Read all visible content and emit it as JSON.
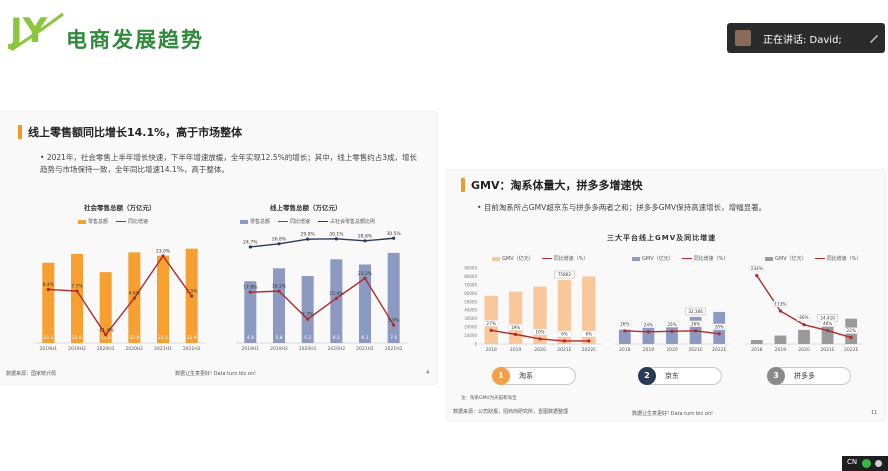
{
  "header": {
    "logo_letters": "JY",
    "title": "电商发展趋势"
  },
  "speaker": {
    "text": "正在讲话: David;"
  },
  "slide1": {
    "title": "线上零售额同比增长14.1%，高于市场整体",
    "bullet": "2021年，社会零售上半年增长快速，下半年增速放缓，全年实现12.5%的增长；其中，线上零售约占3成，增长趋势与市场保持一致，全年同比增速14.1%，高于整体。",
    "left_chart_title": "社会零售总额（万亿元）",
    "right_chart_title": "线上零售总额（万亿元）",
    "legend_left": [
      "零售总额",
      "同比增速"
    ],
    "legend_right": [
      "零售总额",
      "同比增速",
      "占社会零售总额比例"
    ],
    "source": "数据来源：国家统计局",
    "footer": "数据让生意更好! Data turn biz on!",
    "page": "4"
  },
  "slide2": {
    "title": "GMV：淘系体量大，拼多多增速快",
    "bullet": "目前淘系所占GMV超京东与拼多多两者之和；拼多多GMV保持高速增长，增幅显著。",
    "chart_title": "三大平台线上GMV及同比增速",
    "legend": [
      "GMV（亿元）",
      "同比增速（%）"
    ],
    "platforms": [
      {
        "num": "1",
        "name": "淘系",
        "color": "#f5a04a"
      },
      {
        "num": "2",
        "name": "京东",
        "color": "#2d3a56"
      },
      {
        "num": "3",
        "name": "拼多多",
        "color": "#8a8a8a"
      }
    ],
    "note": "注：淘系GMV为天猫和淘宝",
    "source": "数据来源：公司财报，招商商研究所，壹图数据整理",
    "footer": "数据让生意更好! Data turn biz on!",
    "page": "11"
  },
  "taskbar": {
    "label": "CN"
  },
  "chart_data": [
    {
      "type": "bar",
      "title": "社会零售总额（万亿元）",
      "categories": [
        "2019H1",
        "2019H2",
        "2020H1",
        "2020H2",
        "2021H1",
        "2021H2"
      ],
      "series": [
        {
          "name": "零售总额",
          "values": [
            19.5,
            21.6,
            17.2,
            22.0,
            21.2,
            22.9
          ],
          "labels": [
            "19.5",
            "21.6",
            "17.2",
            "22.0",
            "21.2",
            "22.9"
          ]
        },
        {
          "name": "同比增速",
          "values": [
            8.4,
            7.7,
            -11.4,
            4.6,
            23.0,
            5.5
          ],
          "labels": [
            "8.4%",
            "7.7%",
            "-11.4%",
            "4.6%",
            "23.0%",
            "5.5%"
          ]
        }
      ],
      "ylim": [
        0,
        25
      ],
      "y2lim": [
        -15,
        30
      ],
      "grid": false,
      "legend": "top-left"
    },
    {
      "type": "bar",
      "title": "线上零售总额（万亿元）",
      "categories": [
        "2019H1",
        "2019H2",
        "2020H1",
        "2020H2",
        "2021H1",
        "2021H2"
      ],
      "series": [
        {
          "name": "零售总额",
          "values": [
            4.8,
            5.8,
            5.2,
            6.5,
            6.1,
            7.0
          ],
          "labels": [
            "4.8",
            "5.8",
            "5.2",
            "6.5",
            "6.1",
            "7.0"
          ]
        },
        {
          "name": "同比增速",
          "values": [
            17.8,
            18.2,
            7.3,
            15.4,
            23.2,
            5.0
          ],
          "labels": [
            "17.8%",
            "18.2%",
            "7.3%",
            "15.4%",
            "23.2%",
            "5.0%"
          ]
        },
        {
          "name": "占社会零售总额比例",
          "values": [
            24.7,
            26.8,
            29.9,
            30.1,
            28.8,
            30.5
          ],
          "labels": [
            "24.7%",
            "26.8%",
            "29.9%",
            "30.1%",
            "28.8%",
            "30.5%"
          ]
        }
      ],
      "ylim": [
        0,
        8
      ],
      "y2lim": [
        0,
        40
      ],
      "grid": false,
      "legend": "top-left"
    },
    {
      "type": "bar",
      "title": "淘系",
      "categories": [
        "2018",
        "2019",
        "2020",
        "2021E",
        "2022E"
      ],
      "series": [
        {
          "name": "GMV（亿元）",
          "values": [
            57000,
            62000,
            68000,
            75800,
            80000
          ]
        },
        {
          "name": "同比增速（%）",
          "values": [
            27,
            19,
            10,
            6,
            6
          ],
          "labels": [
            "27%",
            "19%",
            "10%",
            "6%",
            "6%"
          ]
        }
      ],
      "bar_labels": {
        "3": "75802"
      },
      "yticks": [
        "0",
        "10000",
        "20000",
        "30000",
        "40000",
        "50000",
        "60000",
        "70000",
        "80000",
        "90000"
      ],
      "ylim": [
        0,
        90000
      ],
      "y2lim": [
        0,
        150
      ],
      "legend": "top-right"
    },
    {
      "type": "bar",
      "title": "京东",
      "categories": [
        "2018",
        "2019",
        "2020",
        "2021E",
        "2022E"
      ],
      "series": [
        {
          "name": "GMV（亿元）",
          "values": [
            17000,
            20000,
            26000,
            32000,
            38000
          ]
        },
        {
          "name": "同比增速（%）",
          "values": [
            26,
            24,
            25,
            26,
            20
          ],
          "labels": [
            "26%",
            "24%",
            "25%",
            "26%",
            "20%"
          ]
        }
      ],
      "bar_labels": {
        "3": "32,306"
      },
      "ylim": [
        0,
        90000
      ],
      "y2lim": [
        0,
        150
      ],
      "legend": "top-right"
    },
    {
      "type": "bar",
      "title": "拼多多",
      "categories": [
        "2018",
        "2019",
        "2020",
        "2021E",
        "2022E"
      ],
      "series": [
        {
          "name": "GMV（亿元）",
          "values": [
            4700,
            10000,
            16700,
            24410,
            30000
          ]
        },
        {
          "name": "同比增速（%）",
          "values": [
            234,
            113,
            66,
            46,
            22
          ],
          "labels": [
            "234%",
            "113%",
            "66%",
            "46%",
            "22%"
          ]
        }
      ],
      "bar_labels": {
        "3": "24,410"
      },
      "ylim": [
        0,
        90000
      ],
      "y2lim": [
        0,
        260
      ],
      "legend": "top-right"
    }
  ],
  "colors": {
    "orange": "#f5a030",
    "dark_red": "#b22a2a",
    "slate": "#8c9ac2",
    "navy": "#2d3a56",
    "brand_green": "#2f8a3c"
  }
}
